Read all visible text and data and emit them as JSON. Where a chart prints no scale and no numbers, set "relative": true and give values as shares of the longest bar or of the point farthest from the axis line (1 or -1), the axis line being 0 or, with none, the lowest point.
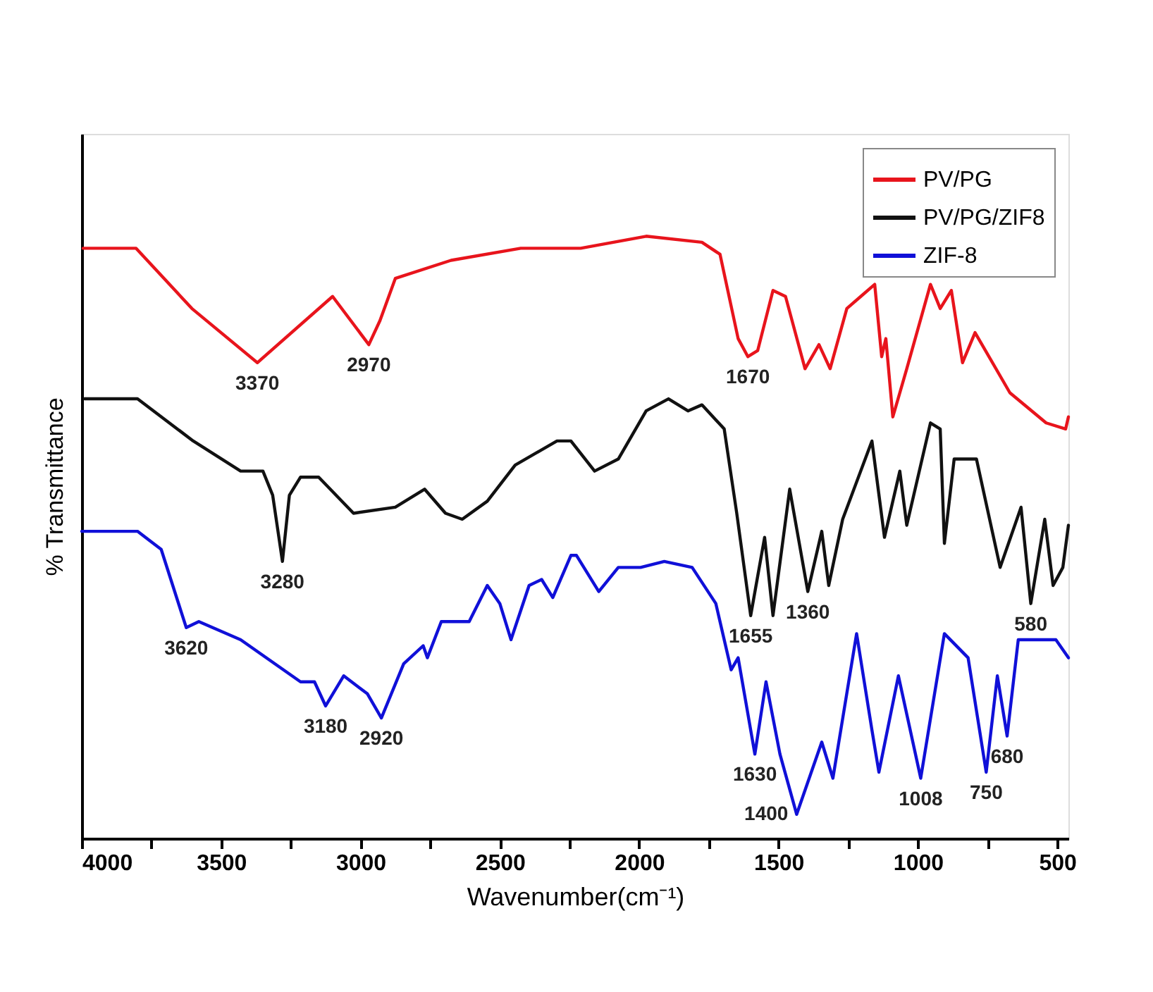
{
  "chart_data": {
    "type": "line",
    "relative": true,
    "xlabel": "Wavenumber(cm⁻¹)",
    "ylabel": "% Transmittance",
    "xlim": [
      4000,
      460
    ],
    "xticks": [
      4000,
      {
        "value": 3750,
        "label": null
      },
      3500,
      {
        "value": 3250,
        "label": null
      },
      3000,
      {
        "value": 2750,
        "label": null
      },
      2500,
      {
        "value": 2250,
        "label": null
      },
      2000,
      {
        "value": 1750,
        "label": null
      },
      1500,
      {
        "value": 1250,
        "label": null
      },
      1000,
      {
        "value": 750,
        "label": null
      },
      500
    ],
    "tick_labels": "x",
    "grid": false,
    "legend": "top right",
    "marker": "none",
    "line_style": "solid",
    "series": [
      {
        "name": "PV/PG",
        "color": "#e8141c",
        "x": [
          3995,
          3805,
          3605,
          3370,
          3100,
          2970,
          2930,
          2875,
          2675,
          2425,
          2210,
          1975,
          1775,
          1710,
          1645,
          1610,
          1575,
          1520,
          1475,
          1405,
          1355,
          1315,
          1255,
          1205,
          1155,
          1130,
          1115,
          1090,
          1040,
          955,
          920,
          880,
          840,
          795,
          670,
          540,
          470,
          460
        ],
        "values": [
          0.98,
          0.98,
          0.88,
          0.79,
          0.9,
          0.82,
          0.86,
          0.93,
          0.96,
          0.98,
          0.98,
          1.0,
          0.99,
          0.97,
          0.83,
          0.8,
          0.81,
          0.91,
          0.9,
          0.78,
          0.82,
          0.78,
          0.88,
          0.9,
          0.92,
          0.8,
          0.83,
          0.7,
          0.78,
          0.92,
          0.88,
          0.91,
          0.79,
          0.84,
          0.74,
          0.69,
          0.68,
          0.7
        ]
      },
      {
        "name": "PV/PG/ZIF8",
        "color": "#111111",
        "x": [
          3990,
          3800,
          3600,
          3430,
          3350,
          3315,
          3280,
          3255,
          3215,
          3150,
          3025,
          2875,
          2770,
          2695,
          2635,
          2545,
          2445,
          2295,
          2245,
          2160,
          2075,
          1975,
          1895,
          1825,
          1775,
          1695,
          1650,
          1600,
          1550,
          1520,
          1460,
          1395,
          1345,
          1320,
          1270,
          1165,
          1120,
          1065,
          1040,
          955,
          920,
          905,
          870,
          790,
          705,
          630,
          595,
          545,
          515,
          480,
          460
        ],
        "values": [
          0.73,
          0.73,
          0.66,
          0.61,
          0.61,
          0.57,
          0.46,
          0.57,
          0.6,
          0.6,
          0.54,
          0.55,
          0.58,
          0.54,
          0.53,
          0.56,
          0.62,
          0.66,
          0.66,
          0.61,
          0.63,
          0.71,
          0.73,
          0.71,
          0.72,
          0.68,
          0.54,
          0.37,
          0.5,
          0.37,
          0.58,
          0.41,
          0.51,
          0.42,
          0.53,
          0.66,
          0.5,
          0.61,
          0.52,
          0.69,
          0.68,
          0.49,
          0.63,
          0.63,
          0.45,
          0.55,
          0.39,
          0.53,
          0.42,
          0.45,
          0.52
        ]
      },
      {
        "name": "ZIF-8",
        "color": "#1010d8",
        "x": [
          4000,
          3800,
          3715,
          3625,
          3580,
          3430,
          3215,
          3165,
          3125,
          3060,
          2975,
          2925,
          2845,
          2775,
          2760,
          2710,
          2610,
          2545,
          2500,
          2460,
          2395,
          2350,
          2310,
          2245,
          2225,
          2145,
          2075,
          1995,
          1910,
          1810,
          1725,
          1670,
          1645,
          1585,
          1545,
          1495,
          1435,
          1345,
          1305,
          1220,
          1165,
          1140,
          1070,
          990,
          905,
          820,
          755,
          715,
          680,
          640,
          505,
          460
        ],
        "values": [
          0.51,
          0.51,
          0.48,
          0.35,
          0.36,
          0.33,
          0.26,
          0.26,
          0.22,
          0.27,
          0.24,
          0.2,
          0.29,
          0.32,
          0.3,
          0.36,
          0.36,
          0.42,
          0.39,
          0.33,
          0.42,
          0.43,
          0.4,
          0.47,
          0.47,
          0.41,
          0.45,
          0.45,
          0.46,
          0.45,
          0.39,
          0.28,
          0.3,
          0.14,
          0.26,
          0.14,
          0.04,
          0.16,
          0.1,
          0.34,
          0.18,
          0.11,
          0.27,
          0.1,
          0.34,
          0.3,
          0.11,
          0.27,
          0.17,
          0.33,
          0.33,
          0.3
        ]
      }
    ],
    "annotations": [
      {
        "text": "3370",
        "x": 3370,
        "y": 0.79
      },
      {
        "text": "2970",
        "x": 2970,
        "y": 0.82
      },
      {
        "text": "1670",
        "x": 1610,
        "y": 0.8
      },
      {
        "text": "3280",
        "x": 3280,
        "y": 0.46
      },
      {
        "text": "1655",
        "x": 1600,
        "y": 0.37
      },
      {
        "text": "1360",
        "x": 1395,
        "y": 0.41
      },
      {
        "text": "580",
        "x": 595,
        "y": 0.39
      },
      {
        "text": "3620",
        "x": 3625,
        "y": 0.35
      },
      {
        "text": "3180",
        "x": 3125,
        "y": 0.22
      },
      {
        "text": "2920",
        "x": 2925,
        "y": 0.2
      },
      {
        "text": "1630",
        "x": 1585,
        "y": 0.14
      },
      {
        "text": "1400",
        "x": 1435,
        "y": 0.04
      },
      {
        "text": "1008",
        "x": 990,
        "y": 0.1
      },
      {
        "text": "750",
        "x": 755,
        "y": 0.11
      },
      {
        "text": "680",
        "x": 680,
        "y": 0.17
      }
    ]
  }
}
